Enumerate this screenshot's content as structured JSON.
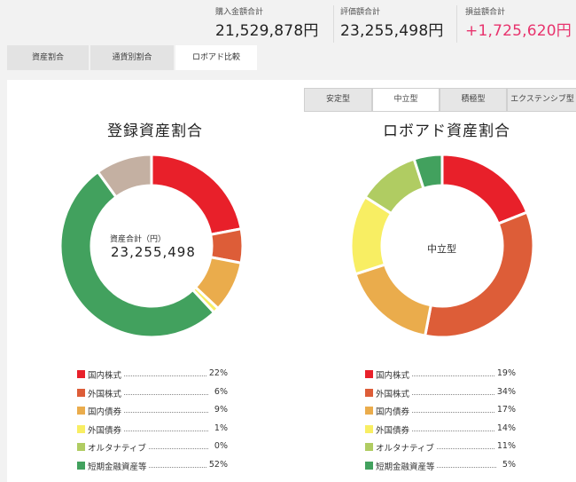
{
  "summary": {
    "purchase": {
      "label": "購入金額合計",
      "value": "21,529,878円"
    },
    "valuation": {
      "label": "評価額合計",
      "value": "23,255,498円"
    },
    "profit": {
      "label": "損益額合計",
      "value": "+1,725,620円"
    }
  },
  "tabs": [
    "資産割合",
    "通貨別割合",
    "ロボアド比較"
  ],
  "active_tab": "ロボアド比較",
  "subtabs": [
    "安定型",
    "中立型",
    "積極型",
    "エクステンシブ型"
  ],
  "active_subtab": "中立型",
  "colors": {
    "profit": "#e8336d",
    "国内株式": "#e8202a",
    "外国株式": "#dd5d38",
    "国内債券": "#eaac4c",
    "外国債券": "#f8ee63",
    "オルタナティブ": "#b0cc62",
    "短期金融資産等": "#42a15e",
    "その他": "#c4b0a2"
  },
  "chart_data": [
    {
      "type": "pie",
      "title": "登録資産割合",
      "center_label": "資産合計（円）",
      "center_value": "23,255,498",
      "slices": [
        {
          "name": "国内株式",
          "value": 22,
          "label": "22%"
        },
        {
          "name": "外国株式",
          "value": 6,
          "label": "6%"
        },
        {
          "name": "国内債券",
          "value": 9,
          "label": "9%"
        },
        {
          "name": "外国債券",
          "value": 1,
          "label": "1%"
        },
        {
          "name": "オルタナティブ",
          "value": 0,
          "label": "0%"
        },
        {
          "name": "短期金融資産等",
          "value": 52,
          "label": "52%"
        }
      ],
      "unlisted_remainder": {
        "color_key": "その他",
        "value": 10
      }
    },
    {
      "type": "pie",
      "title": "ロボアド資産割合",
      "center_text": "中立型",
      "slices": [
        {
          "name": "国内株式",
          "value": 19,
          "label": "19%"
        },
        {
          "name": "外国株式",
          "value": 34,
          "label": "34%"
        },
        {
          "name": "国内債券",
          "value": 17,
          "label": "17%"
        },
        {
          "name": "外国債券",
          "value": 14,
          "label": "14%"
        },
        {
          "name": "オルタナティブ",
          "value": 11,
          "label": "11%"
        },
        {
          "name": "短期金融資産等",
          "value": 5,
          "label": "5%"
        }
      ]
    }
  ]
}
